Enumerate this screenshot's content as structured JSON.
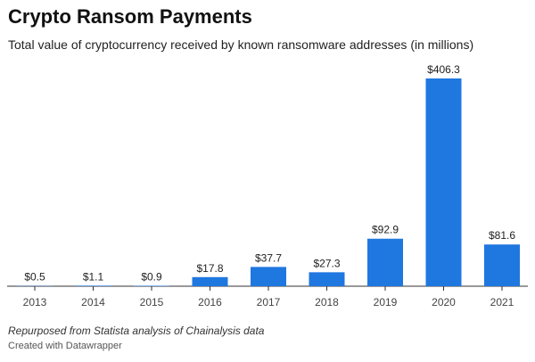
{
  "header": {
    "title": "Crypto Ransom Payments",
    "subtitle": "Total value of cryptocurrency received by known ransomware addresses (in millions)"
  },
  "footer": {
    "notes": "Repurposed from Statista analysis of Chainalysis data",
    "byline": "Created with Datawrapper"
  },
  "colors": {
    "bar": "#1f77e0",
    "axis": "#333333",
    "label": "#222222"
  },
  "chart_data": {
    "type": "bar",
    "title": "Crypto Ransom Payments",
    "subtitle": "Total value of cryptocurrency received by known ransomware addresses (in millions)",
    "categories": [
      "2013",
      "2014",
      "2015",
      "2016",
      "2017",
      "2018",
      "2019",
      "2020",
      "2021"
    ],
    "values": [
      0.5,
      1.1,
      0.9,
      17.8,
      37.7,
      27.3,
      92.9,
      406.3,
      81.6
    ],
    "data_labels": [
      "$0.5",
      "$1.1",
      "$0.9",
      "$17.8",
      "$37.7",
      "$27.3",
      "$92.9",
      "$406.3",
      "$81.6"
    ],
    "xlabel": "",
    "ylabel": "",
    "ylim": [
      0,
      406.3
    ],
    "grid": false,
    "legend": "none"
  }
}
